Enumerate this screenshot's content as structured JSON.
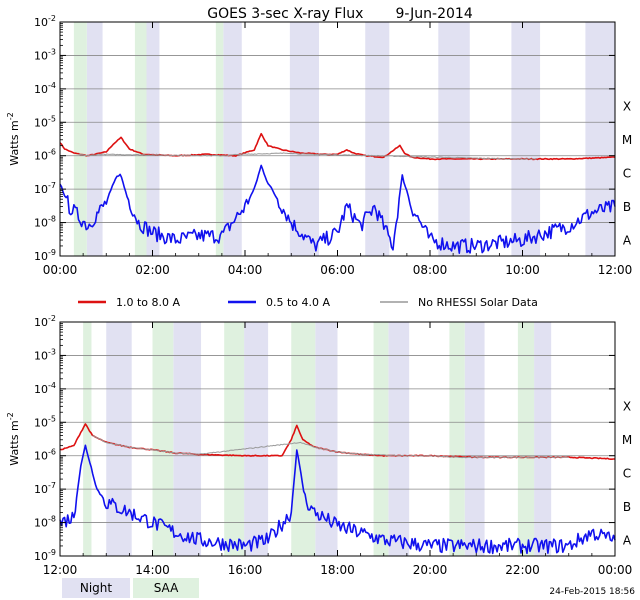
{
  "title": "GOES 3-sec X-ray Flux",
  "date": "9-Jun-2014",
  "ylabel": "Watts m",
  "ylabel_exp": "-2",
  "yticks": [
    {
      "exp": "-2"
    },
    {
      "exp": "-3"
    },
    {
      "exp": "-4"
    },
    {
      "exp": "-5"
    },
    {
      "exp": "-6"
    },
    {
      "exp": "-7"
    },
    {
      "exp": "-8"
    },
    {
      "exp": "-9"
    }
  ],
  "ytick_base": "10",
  "flare_classes": [
    "X",
    "M",
    "C",
    "B",
    "A"
  ],
  "legend": {
    "series1": "1.0 to 8.0 A",
    "series2": "0.5 to 4.0 A",
    "series3": "No RHESSI Solar Data"
  },
  "footer": {
    "night_label": "Night",
    "saa_label": "SAA",
    "timestamp": "24-Feb-2015 18:56"
  },
  "colors": {
    "long": "#dd1111",
    "short": "#1111ee",
    "norhessi": "#999999",
    "night": "#e1e1f2",
    "saa": "#dff1df",
    "grid": "#888888"
  },
  "chart_data": [
    {
      "type": "line",
      "title": "GOES 3-sec X-ray Flux    9-Jun-2014",
      "xlabel": "",
      "ylabel": "Watts m-2",
      "yscale": "log",
      "ylim": [
        1e-09,
        0.01
      ],
      "xlim_hours": [
        0,
        12
      ],
      "xticks": [
        "00:00",
        "02:00",
        "04:00",
        "06:00",
        "08:00",
        "10:00",
        "12:00"
      ],
      "night_bands_hours": [
        [
          0.58,
          0.92
        ],
        [
          1.87,
          2.15
        ],
        [
          3.53,
          3.93
        ],
        [
          4.97,
          5.6
        ],
        [
          6.6,
          7.12
        ],
        [
          8.18,
          8.86
        ],
        [
          9.76,
          10.38
        ],
        [
          11.36,
          12.0
        ]
      ],
      "saa_bands_hours": [
        [
          0.3,
          0.58
        ],
        [
          1.62,
          1.87
        ],
        [
          3.37,
          3.53
        ]
      ],
      "series": [
        {
          "name": "1.0 to 8.0 A",
          "x_hours": [
            0,
            0.1,
            0.3,
            0.6,
            1.0,
            1.15,
            1.32,
            1.5,
            1.8,
            2.5,
            3.2,
            3.8,
            4.2,
            4.35,
            4.5,
            4.8,
            5.2,
            5.7,
            6.0,
            6.2,
            6.35,
            6.6,
            7.0,
            7.35,
            7.45,
            7.6,
            8.0,
            9.0,
            10.0,
            11.0,
            12.0
          ],
          "y": [
            2.5e-06,
            1.6e-06,
            1.2e-06,
            1e-06,
            1.3e-06,
            2.2e-06,
            3.5e-06,
            1.6e-06,
            1.1e-06,
            1e-06,
            1.1e-06,
            1e-06,
            1.5e-06,
            4.5e-06,
            2e-06,
            1.5e-06,
            1.2e-06,
            1.1e-06,
            1.1e-06,
            1.5e-06,
            1.2e-06,
            1e-06,
            9e-07,
            2e-06,
            1.2e-06,
            9e-07,
            8e-07,
            8e-07,
            8e-07,
            8e-07,
            9e-07
          ]
        },
        {
          "name": "0.5 to 4.0 A",
          "x_hours": [
            0,
            0.2,
            0.6,
            1.0,
            1.2,
            1.3,
            1.45,
            1.7,
            2.0,
            2.5,
            3.0,
            3.5,
            4.0,
            4.2,
            4.35,
            4.5,
            4.8,
            5.0,
            5.5,
            6.0,
            6.2,
            6.5,
            6.8,
            7.2,
            7.4,
            7.6,
            8.0,
            8.5,
            9.0,
            10.0,
            11.0,
            11.5,
            12.0
          ],
          "y": [
            1.5e-07,
            3e-08,
            8e-09,
            4e-08,
            2e-07,
            3e-07,
            6e-08,
            1e-08,
            5e-09,
            3e-09,
            4e-09,
            4e-09,
            3e-08,
            1e-07,
            5e-07,
            1.5e-07,
            3e-08,
            1e-08,
            2e-09,
            5e-09,
            3e-08,
            8e-09,
            3e-08,
            2e-09,
            2.5e-07,
            3e-08,
            3e-09,
            2e-09,
            2e-09,
            3e-09,
            8e-09,
            2e-08,
            3e-08
          ]
        },
        {
          "name": "No RHESSI Solar Data",
          "x_hours": [
            0.4,
            0.6,
            0.85,
            3.4,
            3.6,
            3.85,
            5.0,
            5.3,
            5.6,
            9.7,
            10.0,
            10.3
          ],
          "y": [
            1.1e-06,
            1e-06,
            1.1e-06,
            1e-06,
            1e-06,
            1.1e-06,
            1.2e-06,
            1.1e-06,
            1.1e-06,
            8e-07,
            8e-07,
            8e-07
          ]
        }
      ]
    },
    {
      "type": "line",
      "xlabel": "",
      "ylabel": "Watts m-2",
      "yscale": "log",
      "ylim": [
        1e-09,
        0.01
      ],
      "xlim_hours": [
        12,
        24
      ],
      "xticks": [
        "12:00",
        "14:00",
        "16:00",
        "18:00",
        "20:00",
        "22:00",
        "00:00"
      ],
      "night_bands_hours": [
        [
          13.0,
          13.55
        ],
        [
          14.45,
          15.05
        ],
        [
          15.98,
          16.5
        ],
        [
          17.52,
          18.0
        ],
        [
          19.1,
          19.55
        ],
        [
          20.75,
          21.18
        ],
        [
          22.25,
          22.62
        ]
      ],
      "saa_bands_hours": [
        [
          12.5,
          12.68
        ],
        [
          14.0,
          14.45
        ],
        [
          15.55,
          15.98
        ],
        [
          17.0,
          17.52
        ],
        [
          18.78,
          19.1
        ],
        [
          20.42,
          20.75
        ],
        [
          21.9,
          22.25
        ]
      ],
      "series": [
        {
          "name": "1.0 to 8.0 A",
          "x_hours": [
            12,
            12.3,
            12.45,
            12.55,
            12.7,
            13.0,
            13.5,
            14.0,
            14.5,
            15.0,
            16.0,
            16.8,
            17.0,
            17.12,
            17.25,
            17.5,
            18.0,
            18.5,
            19.0,
            20.0,
            21.0,
            22.0,
            23.0,
            24.0
          ],
          "y": [
            1.5e-06,
            2e-06,
            5e-06,
            9e-06,
            4e-06,
            2.5e-06,
            1.8e-06,
            1.5e-06,
            1.2e-06,
            1.1e-06,
            1e-06,
            1e-06,
            3e-06,
            8e-06,
            3e-06,
            1.8e-06,
            1.3e-06,
            1.1e-06,
            1e-06,
            1e-06,
            9e-07,
            9e-07,
            9e-07,
            8e-07
          ]
        },
        {
          "name": "0.5 to 4.0 A",
          "x_hours": [
            12,
            12.3,
            12.45,
            12.55,
            12.8,
            13.0,
            13.5,
            14.0,
            14.5,
            15.0,
            16.0,
            16.5,
            17.0,
            17.12,
            17.3,
            17.5,
            18.0,
            19.0,
            20.0,
            21.0,
            22.0,
            23.0,
            23.5,
            24.0
          ],
          "y": [
            1e-08,
            1.5e-08,
            5e-07,
            2e-06,
            1e-07,
            4e-08,
            2e-08,
            1e-08,
            5e-09,
            3e-09,
            2e-09,
            3e-09,
            2e-08,
            1.5e-06,
            5e-08,
            2e-08,
            8e-09,
            3e-09,
            2e-09,
            2e-09,
            2e-09,
            2e-09,
            5e-09,
            3e-09
          ]
        },
        {
          "name": "No RHESSI Solar Data",
          "x_hours": [
            12.7,
            13.0,
            13.5,
            14.0,
            14.5,
            15.0,
            17.2,
            17.5,
            18.0,
            18.5,
            19.5,
            20.0,
            20.5,
            21.0,
            21.5,
            22.5,
            23.0
          ],
          "y": [
            4e-06,
            2.5e-06,
            1.8e-06,
            1.5e-06,
            1.2e-06,
            1.1e-06,
            2.5e-06,
            1.8e-06,
            1.3e-06,
            1.1e-06,
            1e-06,
            1e-06,
            9e-07,
            9e-07,
            9e-07,
            9e-07,
            9e-07
          ]
        }
      ]
    }
  ]
}
